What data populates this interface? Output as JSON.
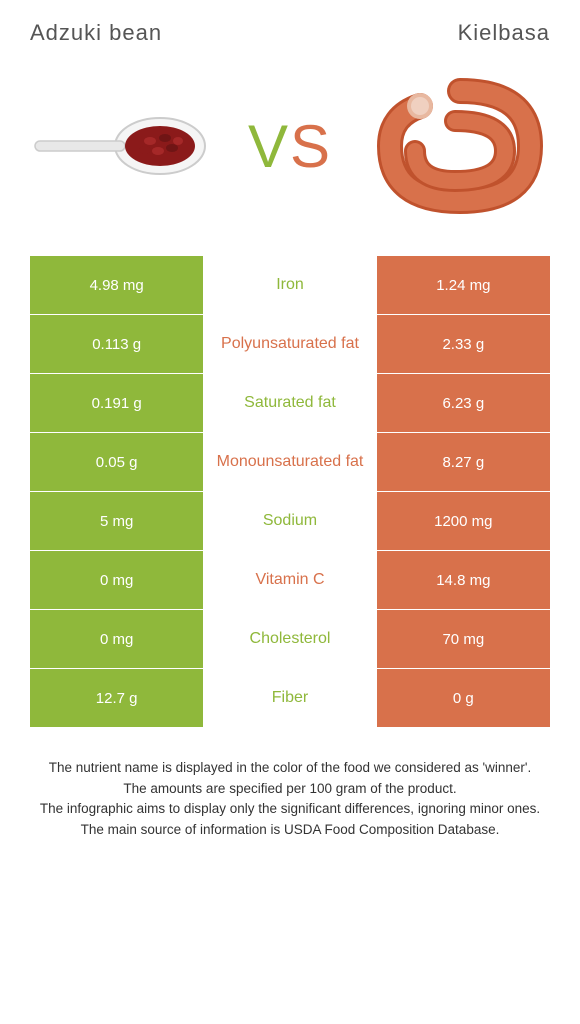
{
  "header": {
    "left_title": "Adzuki bean",
    "right_title": "Kielbasa"
  },
  "colors": {
    "left_bg": "#8fb83b",
    "right_bg": "#d8714b",
    "mid_bg": "#ffffff",
    "left_text": "#ffffff",
    "right_text": "#ffffff",
    "winner_left": "#8fb83b",
    "winner_right": "#d8714b"
  },
  "vs": {
    "v": "V",
    "s": "S"
  },
  "rows": [
    {
      "left": "4.98 mg",
      "name": "Iron",
      "right": "1.24 mg",
      "winner": "left"
    },
    {
      "left": "0.113 g",
      "name": "Polyunsaturated fat",
      "right": "2.33 g",
      "winner": "right"
    },
    {
      "left": "0.191 g",
      "name": "Saturated fat",
      "right": "6.23 g",
      "winner": "left"
    },
    {
      "left": "0.05 g",
      "name": "Monounsaturated fat",
      "right": "8.27 g",
      "winner": "right"
    },
    {
      "left": "5 mg",
      "name": "Sodium",
      "right": "1200 mg",
      "winner": "left"
    },
    {
      "left": "0 mg",
      "name": "Vitamin C",
      "right": "14.8 mg",
      "winner": "right"
    },
    {
      "left": "0 mg",
      "name": "Cholesterol",
      "right": "70 mg",
      "winner": "left"
    },
    {
      "left": "12.7 g",
      "name": "Fiber",
      "right": "0 g",
      "winner": "left"
    }
  ],
  "footer": {
    "l1": "The nutrient name is displayed in the color of the food we considered as 'winner'.",
    "l2": "The amounts are specified per 100 gram of the product.",
    "l3": "The infographic aims to display only the significant differences, ignoring minor ones.",
    "l4": "The main source of information is USDA Food Composition Database."
  }
}
